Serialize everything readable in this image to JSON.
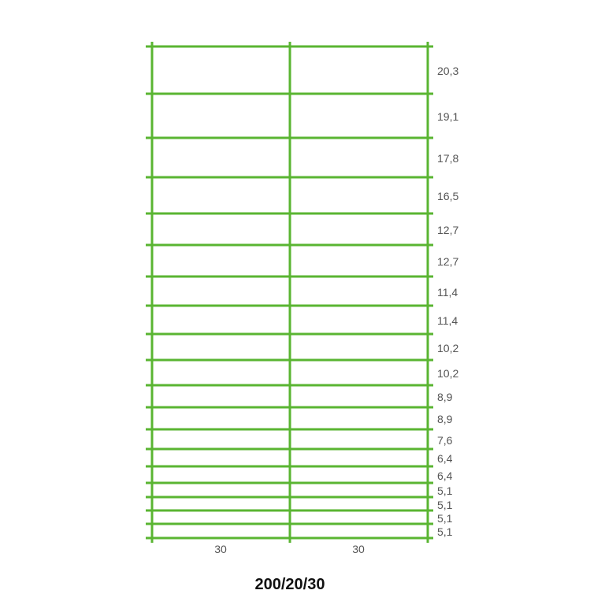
{
  "color": "#5ab532",
  "row_spacings": [
    "20,3",
    "19,1",
    "17,8",
    "16,5",
    "12,7",
    "12,7",
    "11,4",
    "11,4",
    "10,2",
    "10,2",
    "8,9",
    "8,9",
    "7,6",
    "6,4",
    "6,4",
    "5,1",
    "5,1",
    "5,1",
    "5,1"
  ],
  "column_spacings": [
    "30",
    "30"
  ],
  "title": "200/20/30"
}
